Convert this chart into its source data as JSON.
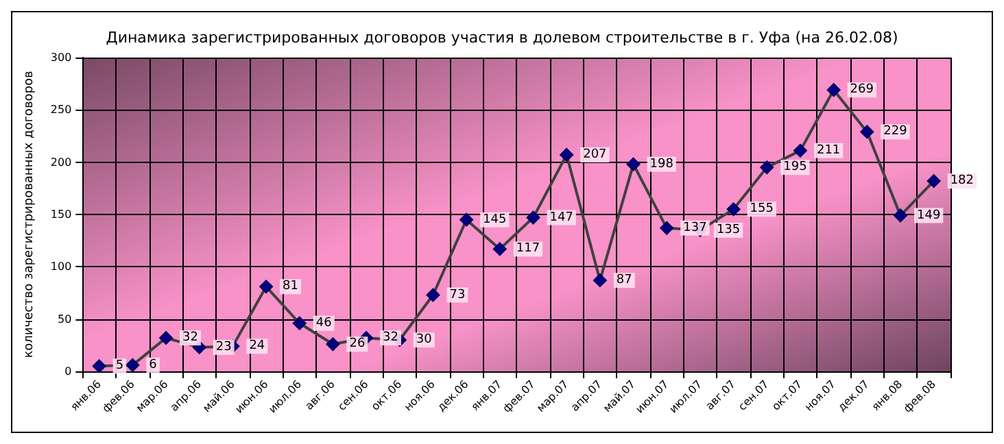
{
  "chart_data": {
    "type": "line",
    "title": "Динамика зарегистрированных договоров участия в долевом строительстве в г. Уфа (на 26.02.08)",
    "ylabel": "количество зарегистрированных договоров",
    "categories": [
      "янв.06",
      "фев.06",
      "мар.06",
      "апр.06",
      "май.06",
      "июн.06",
      "июл.06",
      "авг.06",
      "сен.06",
      "окт.06",
      "ноя.06",
      "дек.06",
      "янв.07",
      "фев.07",
      "мар.07",
      "апр.07",
      "май.07",
      "июн.07",
      "июл.07",
      "авг.07",
      "сен.07",
      "окт.07",
      "ноя.07",
      "дек.07",
      "янв.08",
      "фев.08"
    ],
    "series": [
      {
        "color": "#404040",
        "values": [
          5,
          6,
          32,
          23,
          24,
          81,
          46,
          26,
          32,
          30,
          73,
          145,
          117,
          147,
          207,
          87,
          198,
          137,
          135,
          155,
          195,
          211,
          269,
          229,
          149,
          182
        ]
      }
    ],
    "ylim": [
      0,
      300
    ],
    "yticks": [
      0,
      50,
      100,
      150,
      200,
      250,
      300
    ],
    "grid": true,
    "marker": "diamond",
    "line_style": "solid",
    "data_labels": true
  }
}
